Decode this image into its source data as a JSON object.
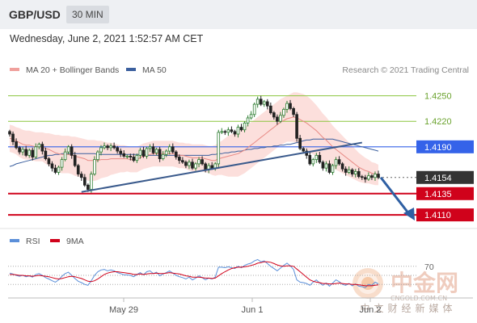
{
  "header": {
    "pair": "GBP/USD",
    "timeframe": "30 MIN"
  },
  "timestamp": "Wednesday, June 2, 2021 1:52:57 AM CET",
  "legend": {
    "bollinger_label": "MA 20 + Bollinger Bands",
    "ma50_label": "MA 50",
    "credit": "Research © 2021 Trading Central",
    "rsi_label": "RSI",
    "rsi_ma_label": "9MA"
  },
  "colors": {
    "candle_up": "#2e7d32",
    "candle_down": "#222222",
    "band_fill": "#f9c4c0",
    "ma20": "#e88a85",
    "ma50": "#3b5f9e",
    "trendline": "#3a5a8c",
    "support": "#d0021b",
    "pivot": "#3563e9",
    "resistance": "#8cc63f",
    "current": "#333333",
    "arrow": "#2e5fa3",
    "rsi": "#5b8fd9",
    "rsi_ma": "#d0021b"
  },
  "watermark": {
    "name": "中金网",
    "site": "CNGOLD.COM.CN",
    "slogan": "中文财经新媒体"
  },
  "chart_data": {
    "type": "candlestick",
    "y_range": [
      1.4094,
      1.4261
    ],
    "x_labels": [
      "May 29",
      "Jun 1",
      "Jun 2"
    ],
    "levels": [
      {
        "label": "1.4250",
        "value": 1.425,
        "kind": "resistance"
      },
      {
        "label": "1.4220",
        "value": 1.422,
        "kind": "resistance"
      },
      {
        "label": "1.4190",
        "value": 1.419,
        "kind": "pivot"
      },
      {
        "label": "1.4154",
        "value": 1.4154,
        "kind": "current"
      },
      {
        "label": "1.4135",
        "value": 1.4135,
        "kind": "support"
      },
      {
        "label": "1.4110",
        "value": 1.411,
        "kind": "support"
      }
    ],
    "closes": [
      1.4205,
      1.4196,
      1.4189,
      1.4184,
      1.4187,
      1.418,
      1.4186,
      1.4178,
      1.419,
      1.4193,
      1.4185,
      1.4176,
      1.417,
      1.4165,
      1.416,
      1.4166,
      1.4175,
      1.4184,
      1.419,
      1.418,
      1.4168,
      1.4158,
      1.4154,
      1.4145,
      1.414,
      1.4158,
      1.4175,
      1.4184,
      1.4189,
      1.4191,
      1.4189,
      1.4191,
      1.4189,
      1.4185,
      1.4182,
      1.4179,
      1.4179,
      1.4178,
      1.4174,
      1.418,
      1.4186,
      1.4179,
      1.4188,
      1.419,
      1.4183,
      1.4187,
      1.4176,
      1.4181,
      1.4185,
      1.419,
      1.4184,
      1.4178,
      1.4174,
      1.4172,
      1.4168,
      1.4172,
      1.4165,
      1.417,
      1.4175,
      1.417,
      1.4163,
      1.4168,
      1.4165,
      1.417,
      1.4207,
      1.4208,
      1.4207,
      1.421,
      1.4208,
      1.4205,
      1.4213,
      1.421,
      1.4218,
      1.4224,
      1.4228,
      1.424,
      1.4246,
      1.424,
      1.4243,
      1.4238,
      1.423,
      1.4225,
      1.422,
      1.4227,
      1.4234,
      1.4241,
      1.4235,
      1.4228,
      1.42,
      1.4188,
      1.4185,
      1.418,
      1.417,
      1.4175,
      1.418,
      1.4172,
      1.4165,
      1.417,
      1.416,
      1.4168,
      1.4175,
      1.417,
      1.4164,
      1.416,
      1.4163,
      1.4158,
      1.4161,
      1.4155,
      1.4154,
      1.4152,
      1.4156,
      1.4154,
      1.4158,
      1.4154
    ],
    "ma20": [
      1.42,
      1.4199,
      1.4197,
      1.4195,
      1.4193,
      1.4192,
      1.4192,
      1.4191,
      1.419,
      1.419,
      1.419,
      1.4188,
      1.4187,
      1.4185,
      1.4183,
      1.4182,
      1.4181,
      1.4181,
      1.4181,
      1.418,
      1.4179,
      1.4178,
      1.4177,
      1.4176,
      1.4174,
      1.4174,
      1.4174,
      1.4174,
      1.4175,
      1.4175,
      1.4175,
      1.4176,
      1.4176,
      1.4176,
      1.4176,
      1.4176,
      1.4176,
      1.4175,
      1.4175,
      1.4175,
      1.4177,
      1.4179,
      1.418,
      1.4181,
      1.4182,
      1.4182,
      1.4182,
      1.4182,
      1.4182,
      1.4182,
      1.4182,
      1.4181,
      1.418,
      1.418,
      1.4179,
      1.4178,
      1.4177,
      1.4177,
      1.4177,
      1.4177,
      1.4176,
      1.4175,
      1.4174,
      1.4174,
      1.4176,
      1.4177,
      1.4178,
      1.4179,
      1.418,
      1.4181,
      1.4182,
      1.4184,
      1.4186,
      1.4189,
      1.4192,
      1.4195,
      1.4198,
      1.4201,
      1.4204,
      1.4207,
      1.421,
      1.4213,
      1.4216,
      1.4219,
      1.4221,
      1.4223,
      1.4224,
      1.4225,
      1.4224,
      1.4222,
      1.422,
      1.4218,
      1.4215,
      1.4212,
      1.4209,
      1.4205,
      1.4201,
      1.4198,
      1.4194,
      1.419,
      1.4187,
      1.4184,
      1.4181,
      1.4178,
      1.4175,
      1.4172,
      1.4169,
      1.4166,
      1.4164,
      1.4162,
      1.4161,
      1.4159,
      1.4158,
      1.4157
    ],
    "ma50": [
      1.4167,
      1.4168,
      1.417,
      1.4171,
      1.4172,
      1.4173,
      1.4174,
      1.4175,
      1.4176,
      1.4177,
      1.4178,
      1.4179,
      1.418,
      1.418,
      1.4181,
      1.4181,
      1.4182,
      1.4182,
      1.4182,
      1.4182,
      1.4182,
      1.4182,
      1.4182,
      1.4182,
      1.4182,
      1.4182,
      1.4182,
      1.4181,
      1.4181,
      1.4181,
      1.4181,
      1.4181,
      1.4181,
      1.4181,
      1.4181,
      1.4181,
      1.4181,
      1.4181,
      1.4181,
      1.4181,
      1.4181,
      1.4181,
      1.418,
      1.418,
      1.418,
      1.418,
      1.418,
      1.418,
      1.418,
      1.418,
      1.418,
      1.418,
      1.418,
      1.418,
      1.418,
      1.418,
      1.418,
      1.418,
      1.418,
      1.418,
      1.418,
      1.418,
      1.4181,
      1.4181,
      1.4182,
      1.4182,
      1.4183,
      1.4183,
      1.4184,
      1.4184,
      1.4185,
      1.4185,
      1.4186,
      1.4187,
      1.4187,
      1.4188,
      1.4188,
      1.4189,
      1.4189,
      1.419,
      1.419,
      1.4191,
      1.4191,
      1.4192,
      1.4192,
      1.4193,
      1.4193,
      1.4194,
      1.4195,
      1.4196,
      1.4197,
      1.4198,
      1.4198,
      1.4199,
      1.4199,
      1.4199,
      1.4199,
      1.4199,
      1.4199,
      1.4199,
      1.4198,
      1.4197,
      1.4196,
      1.4195,
      1.4194,
      1.4193,
      1.4192,
      1.4191,
      1.419,
      1.4189,
      1.4188,
      1.4187,
      1.4186,
      1.4185
    ],
    "bb_width": [
      0.0016,
      0.0016,
      0.0016,
      0.0017,
      0.0017,
      0.0017,
      0.0017,
      0.0017,
      0.0017,
      0.0017,
      0.0017,
      0.0018,
      0.0019,
      0.002,
      0.0021,
      0.0022,
      0.0022,
      0.0022,
      0.0022,
      0.0022,
      0.0023,
      0.0023,
      0.0023,
      0.0023,
      0.0024,
      0.0024,
      0.0024,
      0.0023,
      0.0022,
      0.0021,
      0.002,
      0.0019,
      0.0018,
      0.0017,
      0.0016,
      0.0016,
      0.0015,
      0.0015,
      0.0015,
      0.0015,
      0.0015,
      0.0015,
      0.0015,
      0.0015,
      0.0015,
      0.0015,
      0.0015,
      0.0015,
      0.0015,
      0.0015,
      0.0015,
      0.0015,
      0.0015,
      0.0015,
      0.0015,
      0.0016,
      0.0016,
      0.0016,
      0.0016,
      0.0016,
      0.0016,
      0.0016,
      0.0017,
      0.0018,
      0.0019,
      0.002,
      0.0022,
      0.0024,
      0.0025,
      0.0026,
      0.0027,
      0.0027,
      0.0027,
      0.0027,
      0.0027,
      0.0027,
      0.0027,
      0.0027,
      0.0027,
      0.0027,
      0.0027,
      0.0027,
      0.0027,
      0.0027,
      0.0027,
      0.0027,
      0.0028,
      0.0029,
      0.003,
      0.0031,
      0.0032,
      0.0032,
      0.0032,
      0.0031,
      0.003,
      0.0029,
      0.0028,
      0.0027,
      0.0026,
      0.0025,
      0.0024,
      0.0023,
      0.0022,
      0.0021,
      0.002,
      0.0019,
      0.0018,
      0.0017,
      0.0016,
      0.0015,
      0.0014,
      0.0013,
      0.0013,
      0.0012
    ],
    "rsi": {
      "level_labels": [
        "70"
      ],
      "values": [
        55,
        53,
        50,
        48,
        50,
        47,
        49,
        46,
        52,
        54,
        50,
        45,
        42,
        38,
        35,
        40,
        48,
        54,
        57,
        50,
        43,
        37,
        34,
        30,
        28,
        38,
        50,
        58,
        62,
        63,
        60,
        62,
        60,
        56,
        54,
        51,
        51,
        50,
        47,
        52,
        56,
        51,
        58,
        60,
        54,
        57,
        49,
        53,
        56,
        60,
        55,
        50,
        47,
        45,
        42,
        46,
        40,
        44,
        49,
        45,
        40,
        44,
        42,
        46,
        68,
        68,
        67,
        69,
        67,
        65,
        70,
        67,
        72,
        75,
        77,
        82,
        85,
        80,
        82,
        76,
        70,
        65,
        60,
        66,
        72,
        77,
        71,
        63,
        40,
        35,
        34,
        32,
        28,
        35,
        40,
        33,
        28,
        33,
        26,
        33,
        40,
        36,
        30,
        28,
        32,
        27,
        31,
        26,
        25,
        23,
        30,
        28,
        35,
        31
      ],
      "ma": [
        52,
        52,
        51,
        50,
        50,
        49,
        49,
        48,
        49,
        50,
        49,
        48,
        47,
        45,
        43,
        42,
        43,
        45,
        47,
        48,
        47,
        45,
        43,
        40,
        37,
        36,
        38,
        42,
        47,
        52,
        55,
        57,
        58,
        58,
        57,
        56,
        55,
        54,
        52,
        52,
        53,
        52,
        53,
        54,
        54,
        55,
        54,
        54,
        55,
        56,
        55,
        54,
        53,
        51,
        49,
        48,
        46,
        46,
        46,
        45,
        44,
        44,
        43,
        44,
        49,
        54,
        58,
        62,
        65,
        67,
        68,
        68,
        69,
        70,
        72,
        74,
        77,
        78,
        80,
        80,
        79,
        76,
        73,
        71,
        70,
        71,
        71,
        70,
        64,
        58,
        52,
        46,
        40,
        37,
        35,
        34,
        32,
        32,
        31,
        31,
        32,
        33,
        32,
        31,
        31,
        30,
        30,
        29,
        28,
        27,
        27,
        27,
        28,
        29
      ]
    }
  }
}
